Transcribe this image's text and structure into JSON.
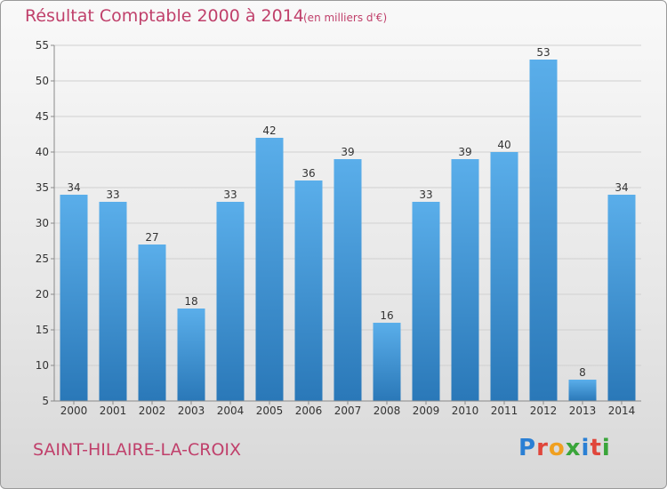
{
  "header": {
    "title": "Résultat Comptable 2000 à 2014",
    "subtitle": "(en milliers d'€)"
  },
  "footer": {
    "place": "SAINT-HILAIRE-LA-CROIX",
    "logo_text": "Proxiti",
    "logo_colors": [
      "#2a7fd4",
      "#e0463b",
      "#f0a020",
      "#3aa53a",
      "#2a7fd4",
      "#e0463b",
      "#3aa53a"
    ]
  },
  "colors": {
    "bar_light": "#5aaeea",
    "bar_dark": "#2a78b8",
    "grid": "#d0d0d0",
    "axis": "#8a8a8a",
    "text": "#333333"
  },
  "chart_data": {
    "type": "bar",
    "title": "Résultat Comptable 2000 à 2014",
    "subtitle": "(en milliers d'€)",
    "categories": [
      "2000",
      "2001",
      "2002",
      "2003",
      "2004",
      "2005",
      "2006",
      "2007",
      "2008",
      "2009",
      "2010",
      "2011",
      "2012",
      "2013",
      "2014"
    ],
    "values": [
      34,
      33,
      27,
      18,
      33,
      42,
      36,
      39,
      16,
      33,
      39,
      40,
      53,
      8,
      34
    ],
    "ylim": [
      5,
      55
    ],
    "yticks": [
      5,
      10,
      15,
      20,
      25,
      30,
      35,
      40,
      45,
      50,
      55
    ],
    "grid": true,
    "xlabel": "",
    "ylabel": ""
  }
}
